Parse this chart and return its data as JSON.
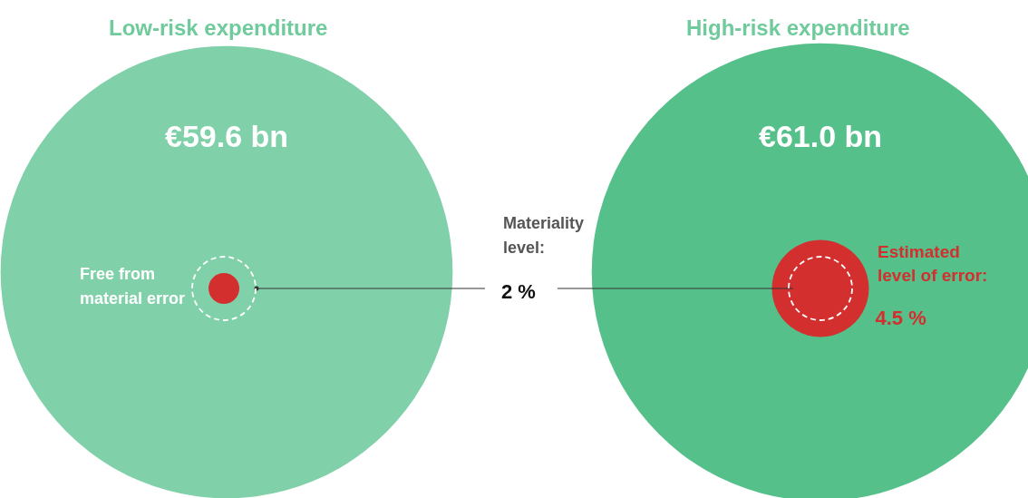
{
  "chart_data": {
    "type": "other",
    "categories": [
      "Low-risk expenditure",
      "High-risk expenditure"
    ],
    "series": [
      {
        "values": [
          59.6,
          61.0
        ],
        "value_labels": [
          "€59.6 bn",
          "€61.0 bn"
        ],
        "colors": [
          "#80d0aa",
          "#55c08a"
        ]
      },
      {
        "name": "Estimated level of error:",
        "color": "#d32f2f",
        "values": [
          null,
          4.5
        ],
        "value_labels": [
          null,
          "4.5 %"
        ]
      }
    ],
    "annotations": [
      "Free from material error",
      "Materiality level:",
      "2 %"
    ]
  }
}
